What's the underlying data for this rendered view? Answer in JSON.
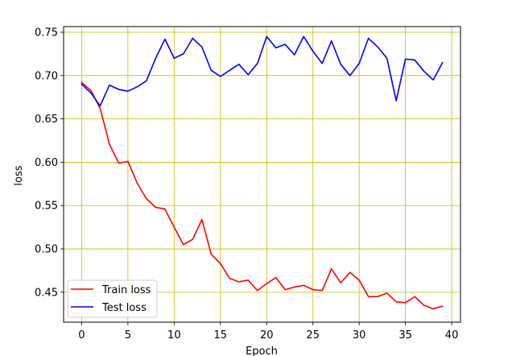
{
  "chart_data": {
    "type": "line",
    "title": "",
    "xlabel": "Epoch",
    "ylabel": "loss",
    "xlim": [
      -1.95,
      40.95
    ],
    "ylim": [
      0.4155,
      0.7565
    ],
    "xticks": [
      0,
      5,
      10,
      15,
      20,
      25,
      30,
      35,
      40
    ],
    "yticks": [
      0.45,
      0.5,
      0.55,
      0.6,
      0.65,
      0.7,
      0.75
    ],
    "ytick_labels": [
      "0.45",
      "0.50",
      "0.55",
      "0.60",
      "0.65",
      "0.70",
      "0.75"
    ],
    "grid": true,
    "grid_color": "#bfbf00",
    "legend_position": "lower-left",
    "x": [
      0,
      1,
      2,
      3,
      4,
      5,
      6,
      7,
      8,
      9,
      10,
      11,
      12,
      13,
      14,
      15,
      16,
      17,
      18,
      19,
      20,
      21,
      22,
      23,
      24,
      25,
      26,
      27,
      28,
      29,
      30,
      31,
      32,
      33,
      34,
      35,
      36,
      37,
      38,
      39
    ],
    "series": [
      {
        "name": "Train loss",
        "color": "#ff0000",
        "values": [
          0.692,
          0.683,
          0.662,
          0.621,
          0.599,
          0.601,
          0.576,
          0.558,
          0.548,
          0.546,
          0.525,
          0.505,
          0.511,
          0.534,
          0.494,
          0.483,
          0.466,
          0.462,
          0.464,
          0.452,
          0.46,
          0.467,
          0.453,
          0.456,
          0.458,
          0.453,
          0.452,
          0.477,
          0.461,
          0.473,
          0.464,
          0.445,
          0.445,
          0.449,
          0.439,
          0.438,
          0.445,
          0.435,
          0.431,
          0.434
        ]
      },
      {
        "name": "Test loss",
        "color": "#0000ff",
        "values": [
          0.69,
          0.68,
          0.665,
          0.689,
          0.684,
          0.682,
          0.687,
          0.694,
          0.72,
          0.742,
          0.72,
          0.725,
          0.743,
          0.733,
          0.706,
          0.699,
          0.706,
          0.713,
          0.701,
          0.714,
          0.745,
          0.732,
          0.736,
          0.724,
          0.745,
          0.728,
          0.714,
          0.74,
          0.713,
          0.7,
          0.714,
          0.743,
          0.733,
          0.72,
          0.671,
          0.719,
          0.718,
          0.705,
          0.695,
          0.715
        ]
      }
    ]
  }
}
